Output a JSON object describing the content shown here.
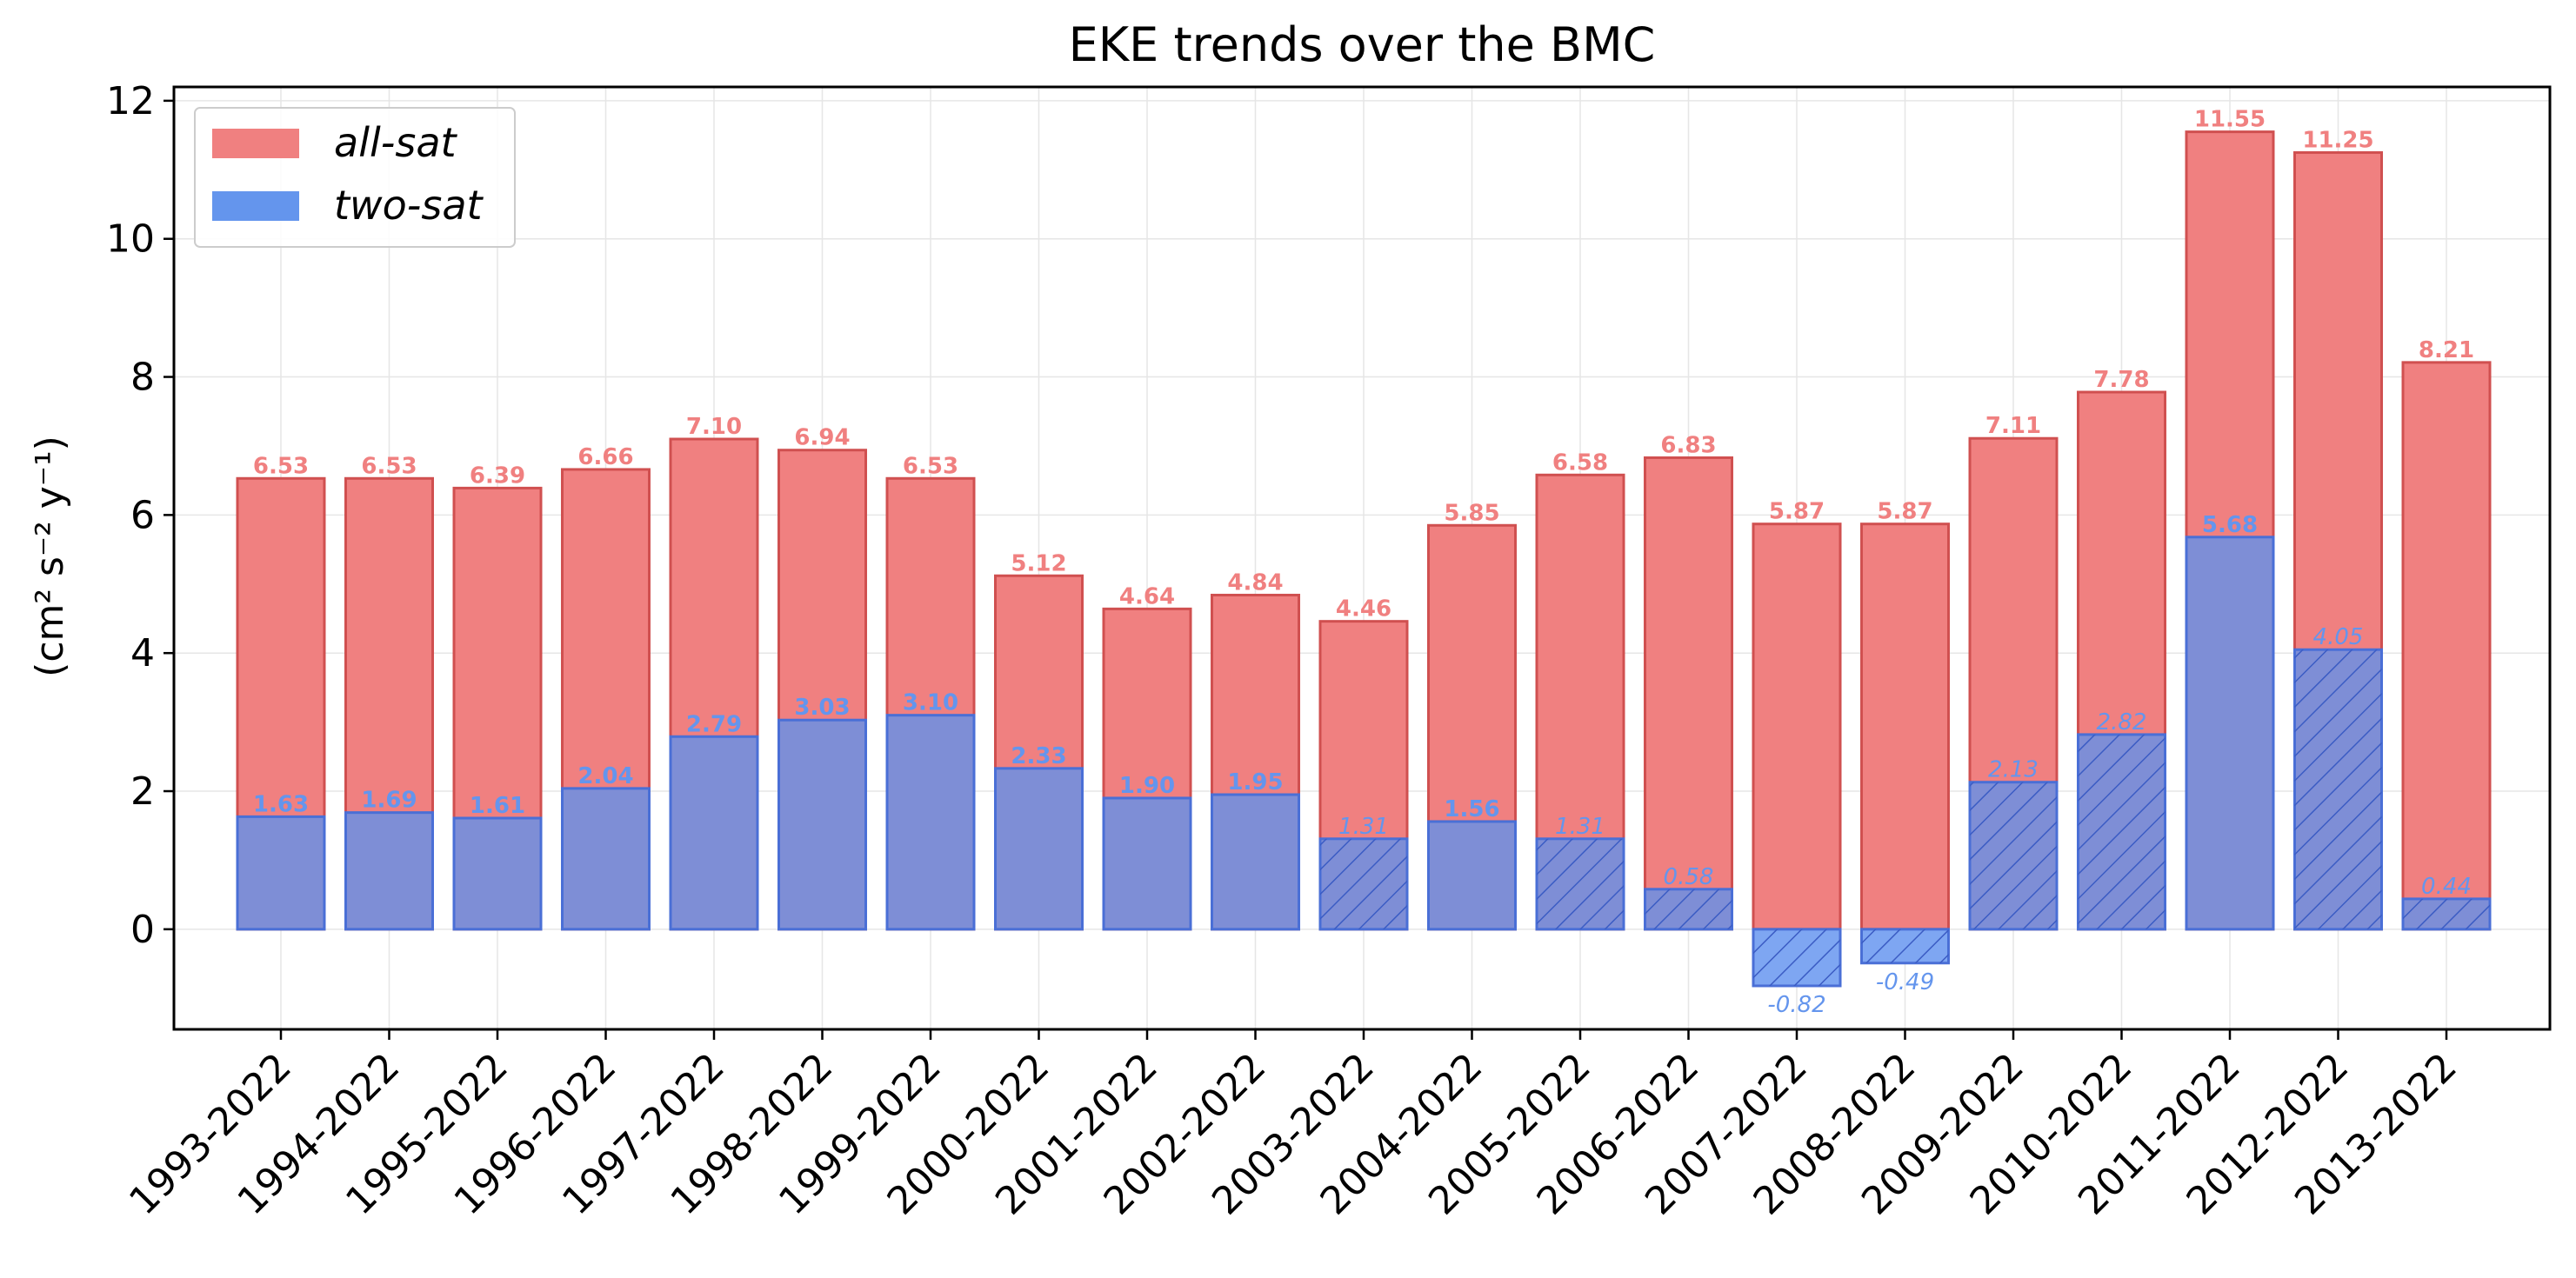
{
  "chart_data": {
    "type": "bar",
    "title": "EKE trends over the BMC",
    "xlabel": "",
    "ylabel": "(cm² s⁻² y⁻¹)",
    "ylim": [
      -1.45,
      12.2
    ],
    "yticks": [
      0,
      2,
      4,
      6,
      8,
      10,
      12
    ],
    "grid": true,
    "legend_position": "upper-left",
    "categories": [
      "1993-2022",
      "1994-2022",
      "1995-2022",
      "1996-2022",
      "1997-2022",
      "1998-2022",
      "1999-2022",
      "2000-2022",
      "2001-2022",
      "2002-2022",
      "2003-2022",
      "2004-2022",
      "2005-2022",
      "2006-2022",
      "2007-2022",
      "2008-2022",
      "2009-2022",
      "2010-2022",
      "2011-2022",
      "2012-2022",
      "2013-2022"
    ],
    "series": [
      {
        "name": "all-sat",
        "color": "#f08080",
        "edge_color": "#d05050",
        "values": [
          6.53,
          6.53,
          6.39,
          6.66,
          7.1,
          6.94,
          6.53,
          5.12,
          4.64,
          4.84,
          4.46,
          5.85,
          6.58,
          6.83,
          5.87,
          5.87,
          7.11,
          7.78,
          11.55,
          11.25,
          8.21
        ],
        "labels": [
          "6.53",
          "6.53",
          "6.39",
          "6.66",
          "7.10",
          "6.94",
          "6.53",
          "5.12",
          "4.64",
          "4.84",
          "4.46",
          "5.85",
          "6.58",
          "6.83",
          "5.87",
          "5.87",
          "7.11",
          "7.78",
          "11.55",
          "11.25",
          "8.21"
        ]
      },
      {
        "name": "two-sat",
        "color": "#6495ed",
        "edge_color": "#4a6fd6",
        "values": [
          1.63,
          1.69,
          1.61,
          2.04,
          2.79,
          3.03,
          3.1,
          2.33,
          1.9,
          1.95,
          1.31,
          1.56,
          1.31,
          0.58,
          -0.82,
          -0.49,
          2.13,
          2.82,
          5.68,
          4.05,
          0.44
        ],
        "labels": [
          "1.63",
          "1.69",
          "1.61",
          "2.04",
          "2.79",
          "3.03",
          "3.10",
          "2.33",
          "1.90",
          "1.95",
          "1.31",
          "1.56",
          "1.31",
          "0.58",
          "-0.82",
          "-0.49",
          "2.13",
          "2.82",
          "5.68",
          "4.05",
          "0.44"
        ],
        "hatched": [
          false,
          false,
          false,
          false,
          false,
          false,
          false,
          false,
          false,
          false,
          true,
          false,
          true,
          true,
          true,
          true,
          true,
          true,
          false,
          true,
          true
        ]
      }
    ]
  }
}
